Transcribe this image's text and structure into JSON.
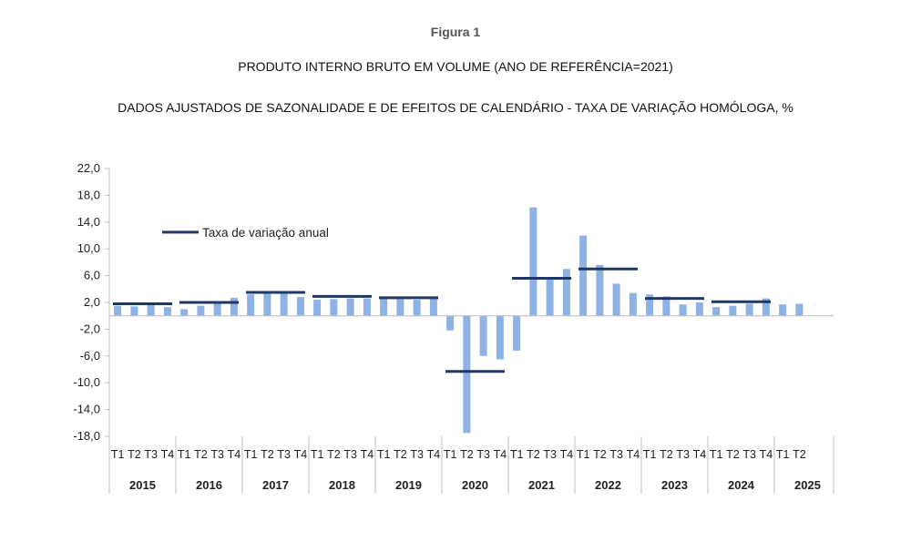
{
  "figure_label": "Figura 1",
  "title": "PRODUTO INTERNO BRUTO EM VOLUME (ANO DE REFERÊNCIA=2021)",
  "subtitle": "DADOS AJUSTADOS DE SAZONALIDADE E DE EFEITOS DE CALENDÁRIO - TAXA DE VARIAÇÃO HOMÓLOGA, %",
  "colors": {
    "bars": "#8fb2e4",
    "annual": "#1f3864",
    "axis": "#bfbfbf"
  },
  "chart_data": {
    "type": "bar",
    "ylim": [
      -18,
      22
    ],
    "yticks": [
      "22,0",
      "18,0",
      "14,0",
      "10,0",
      "6,0",
      "2,0",
      "-2,0",
      "-6,0",
      "-10,0",
      "-14,0",
      "-18,0"
    ],
    "ytick_values": [
      22,
      18,
      14,
      10,
      6,
      2,
      -2,
      -6,
      -10,
      -14,
      -18
    ],
    "legend": "Taxa de variação anual",
    "years": [
      {
        "year": "2015",
        "quarters": [
          "T1",
          "T2",
          "T3",
          "T4"
        ],
        "values": [
          1.5,
          1.4,
          1.6,
          1.3
        ],
        "annual": 1.8
      },
      {
        "year": "2016",
        "quarters": [
          "T1",
          "T2",
          "T3",
          "T4"
        ],
        "values": [
          1.0,
          1.5,
          2.2,
          2.7
        ],
        "annual": 2.0
      },
      {
        "year": "2017",
        "quarters": [
          "T1",
          "T2",
          "T3",
          "T4"
        ],
        "values": [
          3.2,
          3.3,
          3.5,
          2.8
        ],
        "annual": 3.5
      },
      {
        "year": "2018",
        "quarters": [
          "T1",
          "T2",
          "T3",
          "T4"
        ],
        "values": [
          2.4,
          2.5,
          2.6,
          2.6
        ],
        "annual": 2.9
      },
      {
        "year": "2019",
        "quarters": [
          "T1",
          "T2",
          "T3",
          "T4"
        ],
        "values": [
          2.8,
          2.5,
          2.4,
          2.7
        ],
        "annual": 2.7
      },
      {
        "year": "2020",
        "quarters": [
          "T1",
          "T2",
          "T3",
          "T4"
        ],
        "values": [
          -2.2,
          -17.5,
          -6.0,
          -6.5
        ],
        "annual": -8.3
      },
      {
        "year": "2021",
        "quarters": [
          "T1",
          "T2",
          "T3",
          "T4"
        ],
        "values": [
          -5.2,
          16.2,
          5.6,
          7.0
        ],
        "annual": 5.6
      },
      {
        "year": "2022",
        "quarters": [
          "T1",
          "T2",
          "T3",
          "T4"
        ],
        "values": [
          12.0,
          7.6,
          4.8,
          3.4
        ],
        "annual": 7.0
      },
      {
        "year": "2023",
        "quarters": [
          "T1",
          "T2",
          "T3",
          "T4"
        ],
        "values": [
          3.2,
          2.9,
          1.7,
          2.0
        ],
        "annual": 2.6
      },
      {
        "year": "2024",
        "quarters": [
          "T1",
          "T2",
          "T3",
          "T4"
        ],
        "values": [
          1.3,
          1.5,
          1.8,
          2.6
        ],
        "annual": 2.1
      },
      {
        "year": "2025",
        "quarters": [
          "T1",
          "T2"
        ],
        "values": [
          1.7,
          1.8
        ],
        "annual": null
      }
    ]
  }
}
